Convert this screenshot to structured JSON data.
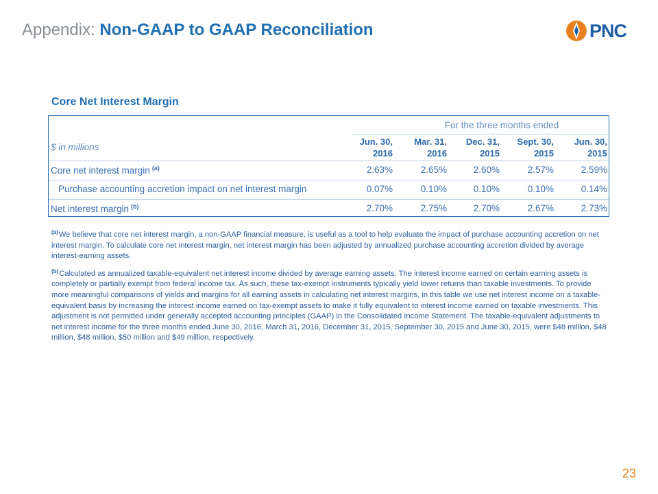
{
  "header": {
    "prefix": "Appendix:",
    "title": "Non-GAAP to GAAP Reconciliation"
  },
  "logo": {
    "text": "PNC"
  },
  "section": {
    "title": "Core Net Interest Margin"
  },
  "table": {
    "period_caption": "For the three months ended",
    "units_label": "$ in millions",
    "columns": [
      {
        "line1": "Jun. 30,",
        "line2": "2016"
      },
      {
        "line1": "Mar. 31,",
        "line2": "2016"
      },
      {
        "line1": "Dec. 31,",
        "line2": "2015"
      },
      {
        "line1": "Sept. 30,",
        "line2": "2015"
      },
      {
        "line1": "Jun. 30,",
        "line2": "2015"
      }
    ],
    "rows": [
      {
        "label": "Core net interest margin",
        "footnote": "(a)",
        "values": [
          "2.63%",
          "2.65%",
          "2.60%",
          "2.57%",
          "2.59%"
        ]
      },
      {
        "label": "Purchase accounting accretion impact on net interest margin",
        "footnote": "",
        "values": [
          "0.07%",
          "0.10%",
          "0.10%",
          "0.10%",
          "0.14%"
        ]
      },
      {
        "label": "Net interest margin",
        "footnote": "(b)",
        "values": [
          "2.70%",
          "2.75%",
          "2.70%",
          "2.67%",
          "2.73%"
        ]
      }
    ]
  },
  "footnotes": [
    {
      "marker": "(a)",
      "text": "We believe that core net interest margin, a non-GAAP financial measure, is useful as a tool to help evaluate the impact of purchase accounting accretion on net interest margin. To calculate core net interest margin, net interest margin has been adjusted by annualized purchase accounting accretion divided by average interest-earning assets."
    },
    {
      "marker": "(b)",
      "text": "Calculated as annualized taxable-equivalent net interest income divided by average earning assets. The interest income earned on certain earning assets is completely or partially exempt from federal income tax. As such, these tax-exempt instruments typically yield lower returns than taxable investments. To provide more meaningful comparisons of yields and margins for all earning assets in calculating net interest margins, in this table we use net interest income on a taxable-equivalent basis by increasing the interest income earned on tax-exempt assets to make it fully equivalent to interest income earned on taxable investments. This adjustment is not permitted under generally accepted accounting principles (GAAP) in the Consolidated Income Statement. The taxable-equivalent adjustments to net interest income for the three months ended June 30, 2016, March 31, 2016, December 31, 2015, September 30, 2015 and June 30, 2015, were $48 million, $48 million, $48 million, $50 million and $49 million, respectively."
    }
  ],
  "page_number": "23",
  "colors": {
    "brand_blue": "#1f6fb2",
    "text_blue": "#3a6fb0",
    "accent_orange": "#e8821e",
    "gray": "#8a8f94"
  }
}
